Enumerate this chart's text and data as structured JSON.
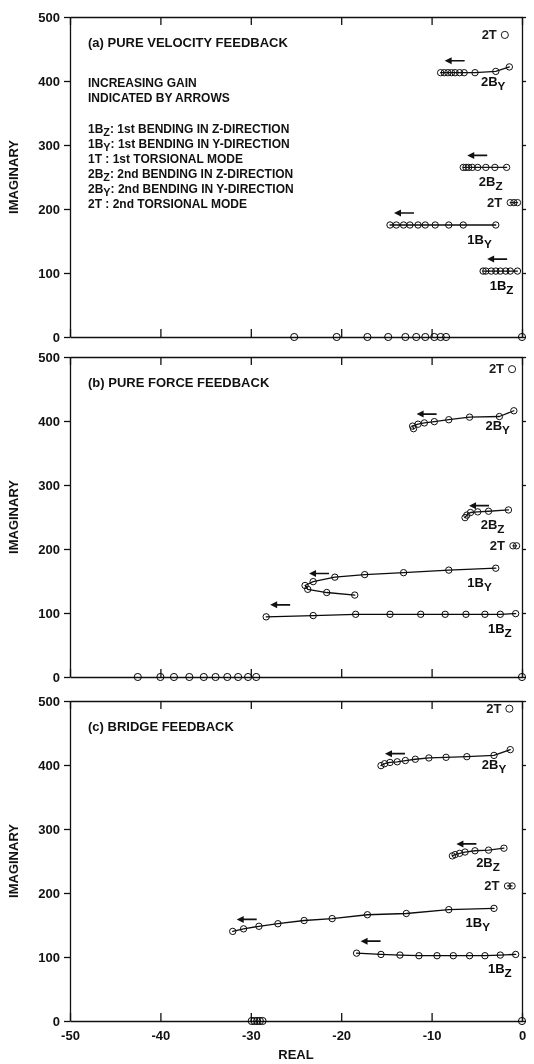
{
  "chart_data": [
    {
      "type": "line",
      "title": "(a) PURE VELOCITY FEEDBACK",
      "ylabel": "IMAGINARY",
      "xlim": [
        -50,
        0
      ],
      "ylim": [
        0,
        500
      ],
      "xticks": [
        -50,
        -40,
        -30,
        -20,
        -10,
        0
      ],
      "yticks": [
        0,
        100,
        200,
        300,
        400,
        500
      ],
      "tick_labels": "y",
      "marker": "circle",
      "line_style": "solid",
      "grid": false,
      "legend": "right",
      "annotations": [
        "INCREASING GAIN\nINDICATED BY ARROWS",
        "1B$_{Z}$:  1st BENDING IN Z-DIRECTION",
        "1B$_{Y}$:  1st BENDING IN Y-DIRECTION",
        "1T   :  1st TORSIONAL MODE",
        "2B$_{Z}$:  2nd BENDING IN Z-DIRECTION",
        "2B$_{Y}$:  2nd BENDING IN Y-DIRECTION",
        "2T   :  2nd TORSIONAL MODE"
      ],
      "series": [
        {
          "type": "scatter",
          "name": "2T",
          "color": "#1a1a1a",
          "x": [
            -1.9
          ],
          "values": [
            472
          ]
        },
        {
          "name": "2B$_{Y}$",
          "color": "#101010",
          "x": [
            -1.4,
            -2.9,
            -5.2,
            -6.4,
            -6.9,
            -7.4,
            -7.8,
            -8.2,
            -8.6,
            -9.0
          ],
          "values": [
            422,
            415,
            413,
            413,
            413,
            413,
            413,
            413,
            413,
            413
          ]
        },
        {
          "name": "2B$_{Z}$",
          "color": "#141414",
          "x": [
            -1.7,
            -3.0,
            -4.0,
            -4.9,
            -5.5,
            -5.9,
            -6.2,
            -6.5
          ],
          "values": [
            265,
            265,
            265,
            265,
            265,
            265,
            265,
            265
          ]
        },
        {
          "name": "2T",
          "color": "#181818",
          "x": [
            -0.5,
            -0.9,
            -1.3
          ],
          "values": [
            210,
            210,
            210
          ]
        },
        {
          "name": "1B$_{Y}$",
          "color": "#0c0c0c",
          "x": [
            -2.9,
            -6.5,
            -8.1,
            -9.6,
            -10.7,
            -11.5,
            -12.4,
            -13.1,
            -13.9,
            -14.6
          ],
          "values": [
            175,
            175,
            175,
            175,
            175,
            175,
            175,
            175,
            175,
            175
          ]
        },
        {
          "name": "1B$_{Z}$",
          "color": "#080808",
          "x": [
            -0.5,
            -1.3,
            -1.8,
            -2.4,
            -2.9,
            -3.4,
            -4.0,
            -4.3
          ],
          "values": [
            103,
            103,
            103,
            103,
            103,
            103,
            103,
            103
          ]
        },
        {
          "type": "scatter",
          "color": "#040404",
          "x": [
            0,
            -8.4,
            -9.0,
            -9.7,
            -10.7,
            -11.7,
            -12.9,
            -14.8,
            -17.1,
            -20.5,
            -25.2
          ],
          "values": [
            0,
            0,
            0,
            0,
            0,
            0,
            0,
            0,
            0,
            0,
            0
          ]
        }
      ]
    },
    {
      "type": "line",
      "title": "(b) PURE FORCE FEEDBACK",
      "ylabel": "IMAGINARY",
      "xlim": [
        -50,
        0
      ],
      "ylim": [
        0,
        500
      ],
      "xticks": [
        -50,
        -40,
        -30,
        -20,
        -10,
        0
      ],
      "yticks": [
        0,
        100,
        200,
        300,
        400,
        500
      ],
      "tick_labels": "y",
      "marker": "circle",
      "line_style": "solid",
      "grid": false,
      "legend": "right",
      "series": [
        {
          "type": "scatter",
          "name": "2T",
          "color": "#1a1a1a",
          "x": [
            -1.1
          ],
          "values": [
            481
          ]
        },
        {
          "name": "2B$_{Y}$",
          "color": "#101010",
          "x": [
            -0.9,
            -2.5,
            -5.8,
            -8.1,
            -9.7,
            -10.8,
            -11.5,
            -12.1,
            -12.0
          ],
          "values": [
            416,
            407,
            406,
            402,
            399,
            397,
            395,
            392,
            388
          ]
        },
        {
          "name": "2B$_{Z}$",
          "color": "#141414",
          "x": [
            -1.5,
            -3.7,
            -4.9,
            -5.7,
            -6.1,
            -6.3
          ],
          "values": [
            261,
            259,
            258,
            257,
            253,
            249
          ]
        },
        {
          "name": "2T",
          "color": "#181818",
          "x": [
            -0.6,
            -1.0
          ],
          "values": [
            205,
            205
          ]
        },
        {
          "name": "1B$_{Y}$",
          "color": "#0c0c0c",
          "x": [
            -2.9,
            -8.1,
            -13.1,
            -17.4,
            -20.7,
            -23.1,
            -24.0,
            -23.7,
            -21.6,
            -18.5
          ],
          "values": [
            170,
            167,
            163,
            160,
            156,
            149,
            143,
            137,
            132,
            128
          ]
        },
        {
          "name": "1B$_{Z}$",
          "color": "#080808",
          "x": [
            -0.7,
            -2.4,
            -4.1,
            -6.2,
            -8.5,
            -11.2,
            -14.6,
            -18.4,
            -23.1,
            -28.3
          ],
          "values": [
            99,
            98,
            98,
            98,
            98,
            98,
            98,
            98,
            96,
            94
          ]
        },
        {
          "type": "scatter",
          "color": "#040404",
          "x": [
            -29.4,
            -30.3,
            -31.4,
            -32.6,
            -33.9,
            -35.2,
            -36.8,
            -38.5,
            -40.0,
            -42.5
          ],
          "values": [
            0,
            0,
            0,
            0,
            0,
            0,
            0,
            0,
            0,
            0
          ]
        },
        {
          "type": "scatter",
          "color": "#000000",
          "x": [
            0
          ],
          "values": [
            0
          ]
        }
      ]
    },
    {
      "type": "line",
      "title": "(c) BRIDGE FEEDBACK",
      "xlabel": "REAL",
      "ylabel": "IMAGINARY",
      "xlim": [
        -50,
        0
      ],
      "ylim": [
        0,
        500
      ],
      "xticks": [
        -50,
        -40,
        -30,
        -20,
        -10,
        0
      ],
      "yticks": [
        0,
        100,
        200,
        300,
        400,
        500
      ],
      "marker": "circle",
      "line_style": "solid",
      "grid": false,
      "legend": "right",
      "series": [
        {
          "type": "scatter",
          "name": "2T",
          "color": "#1a1a1a",
          "x": [
            -1.4
          ],
          "values": [
            488
          ]
        },
        {
          "name": "2B$_{Y}$",
          "color": "#101010",
          "x": [
            -1.3,
            -3.1,
            -6.1,
            -8.4,
            -10.3,
            -11.8,
            -12.9,
            -13.8,
            -14.6,
            -15.2,
            -15.6
          ],
          "values": [
            424,
            415,
            413,
            412,
            411,
            409,
            407,
            405,
            404,
            402,
            399
          ]
        },
        {
          "name": "2B$_{Z}$",
          "color": "#141414",
          "x": [
            -2.0,
            -3.7,
            -5.2,
            -6.3,
            -6.9,
            -7.4,
            -7.7
          ],
          "values": [
            270,
            267,
            266,
            264,
            262,
            260,
            258
          ]
        },
        {
          "name": "2T",
          "color": "#181818",
          "x": [
            -1.1,
            -1.6
          ],
          "values": [
            211,
            211
          ]
        },
        {
          "name": "1B$_{Y}$",
          "color": "#0c0c0c",
          "x": [
            -3.1,
            -8.1,
            -12.8,
            -17.1,
            -21.0,
            -24.1,
            -27.0,
            -29.1,
            -30.8,
            -32.0
          ],
          "values": [
            176,
            174,
            168,
            166,
            160,
            157,
            152,
            148,
            144,
            140
          ]
        },
        {
          "name": "1B$_{Z}$",
          "color": "#080808",
          "x": [
            -0.7,
            -2.4,
            -4.1,
            -5.8,
            -7.6,
            -9.4,
            -11.4,
            -13.5,
            -15.6,
            -18.3
          ],
          "values": [
            104,
            103,
            102,
            102,
            102,
            102,
            102,
            103,
            104,
            106
          ]
        },
        {
          "type": "scatter",
          "color": "#040404",
          "x": [
            -28.7,
            -29.0,
            -29.3,
            -29.6,
            -29.9
          ],
          "values": [
            0,
            0,
            0,
            0,
            0
          ]
        },
        {
          "type": "scatter",
          "color": "#000000",
          "x": [
            0
          ],
          "values": [
            0
          ]
        }
      ]
    }
  ]
}
